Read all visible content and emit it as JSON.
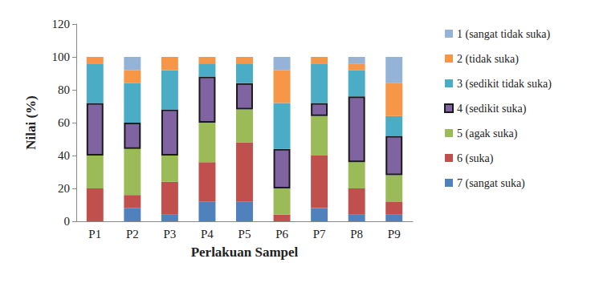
{
  "chart_data": {
    "type": "bar",
    "stacked": true,
    "grid": false,
    "legend": "right",
    "xlabel": "Perlakuan Sampel",
    "ylabel": "Nilai (%)",
    "categories": [
      "P1",
      "P2",
      "P3",
      "P4",
      "P5",
      "P6",
      "P7",
      "P8",
      "P9"
    ],
    "ylim": [
      0,
      120
    ],
    "yticks": [
      0,
      20,
      40,
      60,
      80,
      100,
      120
    ],
    "series": [
      {
        "name": "1 (sangat tidak suka)",
        "color": "#95b3d7",
        "values": [
          0,
          8,
          0,
          0,
          0,
          8,
          0,
          4,
          16
        ]
      },
      {
        "name": "2 (tidak suka)",
        "color": "#f79646",
        "values": [
          4,
          8,
          8,
          4,
          4,
          20,
          4,
          4,
          20
        ]
      },
      {
        "name": "3 (sedikit tidak suka)",
        "color": "#4bacc6",
        "values": [
          24,
          24,
          24,
          8,
          12,
          28,
          24,
          16,
          12
        ]
      },
      {
        "name": "4 (sedikit suka)",
        "color": "#8064a2",
        "values": [
          32,
          16,
          28,
          28,
          16,
          24,
          8,
          40,
          24
        ]
      },
      {
        "name": "5 (agak suka)",
        "color": "#9bbb59",
        "values": [
          20,
          28,
          16,
          24,
          20,
          16,
          24,
          16,
          16
        ]
      },
      {
        "name": "6 (suka)",
        "color": "#c0504d",
        "values": [
          20,
          8,
          20,
          24,
          36,
          4,
          32,
          16,
          8
        ]
      },
      {
        "name": "7 (sangat suka)",
        "color": "#4f81bd",
        "values": [
          0,
          8,
          4,
          12,
          12,
          0,
          8,
          4,
          4
        ]
      }
    ]
  }
}
